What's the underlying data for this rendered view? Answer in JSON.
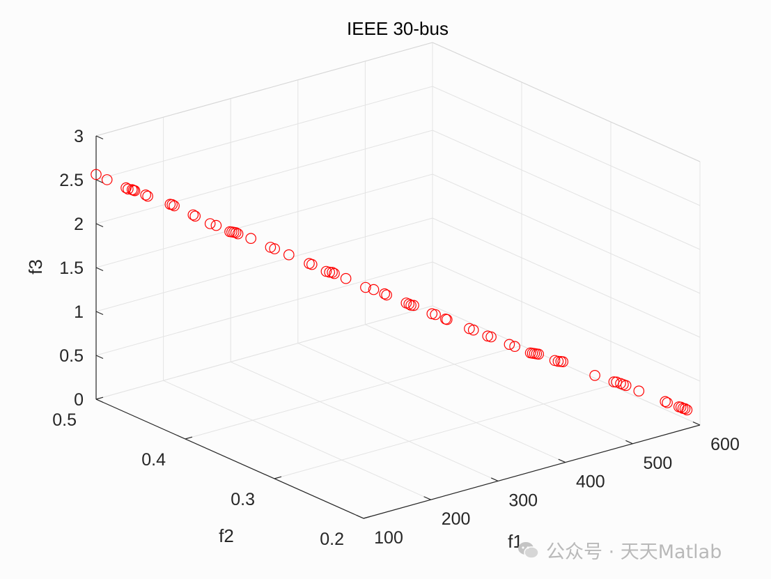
{
  "chart_data": {
    "type": "scatter3d",
    "title": "IEEE 30-bus",
    "xlabel": "f1",
    "ylabel": "f2",
    "zlabel": "f3",
    "xlim": [
      100,
      600
    ],
    "ylim": [
      0.2,
      0.5
    ],
    "zlim": [
      0,
      3
    ],
    "xticks": [
      "100",
      "200",
      "300",
      "400",
      "500",
      "600"
    ],
    "yticks": [
      "0.2",
      "0.3",
      "0.4",
      "0.5"
    ],
    "zticks": [
      "0",
      "0.5",
      "1",
      "1.5",
      "2",
      "2.5",
      "3"
    ],
    "grid": true,
    "marker": "open-circle",
    "color": "#ff0000",
    "points": [
      [
        100,
        0.5,
        2.56
      ],
      [
        103,
        0.49,
        2.54
      ],
      [
        118,
        0.48,
        2.46
      ],
      [
        121,
        0.48,
        2.44
      ],
      [
        127,
        0.48,
        2.42
      ],
      [
        129,
        0.48,
        2.41
      ],
      [
        131,
        0.48,
        2.4
      ],
      [
        134,
        0.47,
        2.39
      ],
      [
        137,
        0.47,
        2.37
      ],
      [
        157,
        0.46,
        2.28
      ],
      [
        160,
        0.46,
        2.27
      ],
      [
        163,
        0.46,
        2.25
      ],
      [
        178,
        0.45,
        2.16
      ],
      [
        181,
        0.45,
        2.14
      ],
      [
        190,
        0.44,
        2.08
      ],
      [
        199,
        0.44,
        2.04
      ],
      [
        206,
        0.43,
        2.0
      ],
      [
        209,
        0.43,
        1.99
      ],
      [
        212,
        0.43,
        1.98
      ],
      [
        215,
        0.43,
        1.97
      ],
      [
        218,
        0.43,
        1.95
      ],
      [
        224,
        0.42,
        1.93
      ],
      [
        240,
        0.41,
        1.84
      ],
      [
        246,
        0.41,
        1.81
      ],
      [
        254,
        0.4,
        1.77
      ],
      [
        271,
        0.39,
        1.68
      ],
      [
        275,
        0.39,
        1.66
      ],
      [
        283,
        0.38,
        1.61
      ],
      [
        288,
        0.38,
        1.59
      ],
      [
        292,
        0.38,
        1.58
      ],
      [
        295,
        0.38,
        1.56
      ],
      [
        299,
        0.37,
        1.54
      ],
      [
        315,
        0.36,
        1.45
      ],
      [
        327,
        0.36,
        1.4
      ],
      [
        330,
        0.35,
        1.39
      ],
      [
        333,
        0.35,
        1.37
      ],
      [
        349,
        0.34,
        1.29
      ],
      [
        353,
        0.34,
        1.27
      ],
      [
        356,
        0.34,
        1.25
      ],
      [
        360,
        0.34,
        1.24
      ],
      [
        374,
        0.33,
        1.16
      ],
      [
        379,
        0.33,
        1.14
      ],
      [
        381,
        0.32,
        1.13
      ],
      [
        383,
        0.32,
        1.12
      ],
      [
        403,
        0.31,
        1.02
      ],
      [
        409,
        0.31,
        0.99
      ],
      [
        417,
        0.3,
        0.95
      ],
      [
        422,
        0.3,
        0.93
      ],
      [
        436,
        0.29,
        0.86
      ],
      [
        444,
        0.29,
        0.82
      ],
      [
        454,
        0.28,
        0.77
      ],
      [
        457,
        0.28,
        0.76
      ],
      [
        460,
        0.28,
        0.75
      ],
      [
        463,
        0.28,
        0.74
      ],
      [
        466,
        0.28,
        0.73
      ],
      [
        477,
        0.27,
        0.68
      ],
      [
        482,
        0.27,
        0.66
      ],
      [
        486,
        0.27,
        0.65
      ],
      [
        489,
        0.27,
        0.64
      ],
      [
        510,
        0.25,
        0.53
      ],
      [
        525,
        0.24,
        0.47
      ],
      [
        529,
        0.24,
        0.46
      ],
      [
        535,
        0.24,
        0.43
      ],
      [
        539,
        0.24,
        0.41
      ],
      [
        543,
        0.24,
        0.39
      ],
      [
        549,
        0.23,
        0.36
      ],
      [
        575,
        0.22,
        0.23
      ],
      [
        578,
        0.22,
        0.21
      ],
      [
        582,
        0.21,
        0.2
      ],
      [
        585,
        0.21,
        0.19
      ],
      [
        588,
        0.21,
        0.17
      ],
      [
        591,
        0.21,
        0.16
      ],
      [
        594,
        0.21,
        0.14
      ]
    ]
  },
  "watermark": {
    "text": "公众号 · 天天Matlab",
    "icon": "chat-bubble-icon"
  }
}
